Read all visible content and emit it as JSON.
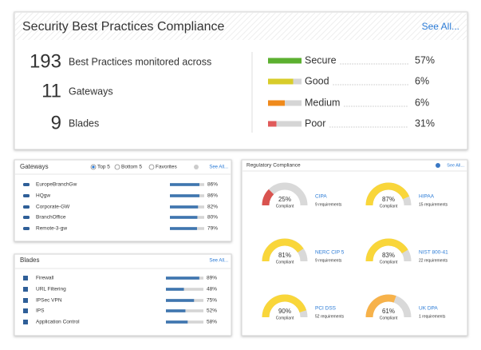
{
  "summary": {
    "title": "Security Best Practices Compliance",
    "see_all": "See All...",
    "stats": [
      {
        "value": 193,
        "label": "Best Practices monitored across"
      },
      {
        "value": 11,
        "label": "Gateways"
      },
      {
        "value": 9,
        "label": "Blades"
      }
    ],
    "levels": [
      {
        "name": "Secure",
        "value": 57,
        "value_label": "57%",
        "color": "#5cb030"
      },
      {
        "name": "Good",
        "value": 6,
        "value_label": "6%",
        "color": "#d8cc2a"
      },
      {
        "name": "Medium",
        "value": 6,
        "value_label": "6%",
        "color": "#ef8a1c"
      },
      {
        "name": "Poor",
        "value": 31,
        "value_label": "31%",
        "color": "#e05a5a"
      }
    ]
  },
  "gateways": {
    "title": "Gateways",
    "filters": [
      "Top 5",
      "Bottom 5",
      "Favorites"
    ],
    "see_all": "See All...",
    "rows": [
      {
        "name": "EuropeBranchGw",
        "value": 86,
        "value_label": "86%"
      },
      {
        "name": "HQgw",
        "value": 86,
        "value_label": "86%"
      },
      {
        "name": "Corporate-GW",
        "value": 82,
        "value_label": "82%"
      },
      {
        "name": "BranchOffice",
        "value": 80,
        "value_label": "80%"
      },
      {
        "name": "Remote-3-gw",
        "value": 79,
        "value_label": "79%"
      }
    ]
  },
  "blades": {
    "title": "Blades",
    "see_all": "See All...",
    "rows": [
      {
        "name": "Firewall",
        "value": 89,
        "value_label": "89%"
      },
      {
        "name": "URL Filtering",
        "value": 48,
        "value_label": "48%"
      },
      {
        "name": "IPSec VPN",
        "value": 75,
        "value_label": "75%"
      },
      {
        "name": "IPS",
        "value": 52,
        "value_label": "52%"
      },
      {
        "name": "Application Control",
        "value": 58,
        "value_label": "58%"
      }
    ]
  },
  "regulatory": {
    "title": "Regulatory Compliance",
    "see_all": "See All...",
    "compliant_label": "Compliant",
    "items": [
      {
        "name": "CIPA",
        "value": 25,
        "value_label": "25%",
        "requirements": "9 requirements",
        "color": "#d9534f"
      },
      {
        "name": "HIPAA",
        "value": 87,
        "value_label": "87%",
        "requirements": "15 requirements",
        "color": "#f9d63a"
      },
      {
        "name": "NERC CIP 5",
        "value": 81,
        "value_label": "81%",
        "requirements": "9 requirements",
        "color": "#f9d63a"
      },
      {
        "name": "NIST 800-41",
        "value": 83,
        "value_label": "83%",
        "requirements": "22 requirements",
        "color": "#f9d63a"
      },
      {
        "name": "PCI DSS",
        "value": 90,
        "value_label": "90%",
        "requirements": "52 requirements",
        "color": "#f9d63a"
      },
      {
        "name": "UK DPA",
        "value": 61,
        "value_label": "61%",
        "requirements": "1 requirements",
        "color": "#f7b24a"
      }
    ]
  }
}
